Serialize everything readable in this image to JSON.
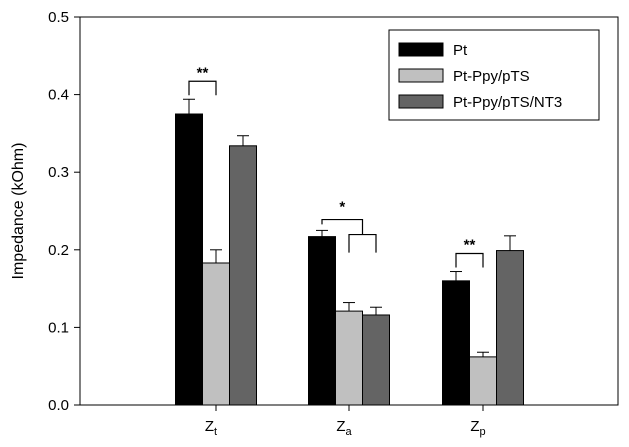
{
  "chart_data": {
    "type": "bar",
    "ylabel": "Impedance (kOhm)",
    "xlabel": "",
    "ylim": [
      0,
      0.5
    ],
    "y_ticks": [
      "0.0",
      "0.1",
      "0.2",
      "0.3",
      "0.4",
      "0.5"
    ],
    "categories": [
      {
        "base": "Z",
        "sub": "t"
      },
      {
        "base": "Z",
        "sub": "a"
      },
      {
        "base": "Z",
        "sub": "p"
      }
    ],
    "series": [
      {
        "name": "Pt",
        "color": "#000000",
        "values": [
          0.375,
          0.217,
          0.16
        ],
        "errors": [
          0.019,
          0.008,
          0.012
        ]
      },
      {
        "name": "Pt-Ppy/pTS",
        "color": "#c0c0c0",
        "values": [
          0.183,
          0.121,
          0.062
        ],
        "errors": [
          0.017,
          0.011,
          0.006
        ]
      },
      {
        "name": "Pt-Ppy/pTS/NT3",
        "color": "#646464",
        "values": [
          0.334,
          0.116,
          0.199
        ],
        "errors": [
          0.013,
          0.01,
          0.019
        ]
      }
    ],
    "significance": [
      {
        "label": "**",
        "category": 0,
        "from_series": 0,
        "to_series": 1
      },
      {
        "label": "*",
        "category": 1,
        "from_series": 0,
        "to_series": 1,
        "nested_to_series": 2
      },
      {
        "label": "**",
        "category": 2,
        "from_series": 0,
        "to_series": 1
      }
    ],
    "legend": "top-right",
    "grid": false
  }
}
